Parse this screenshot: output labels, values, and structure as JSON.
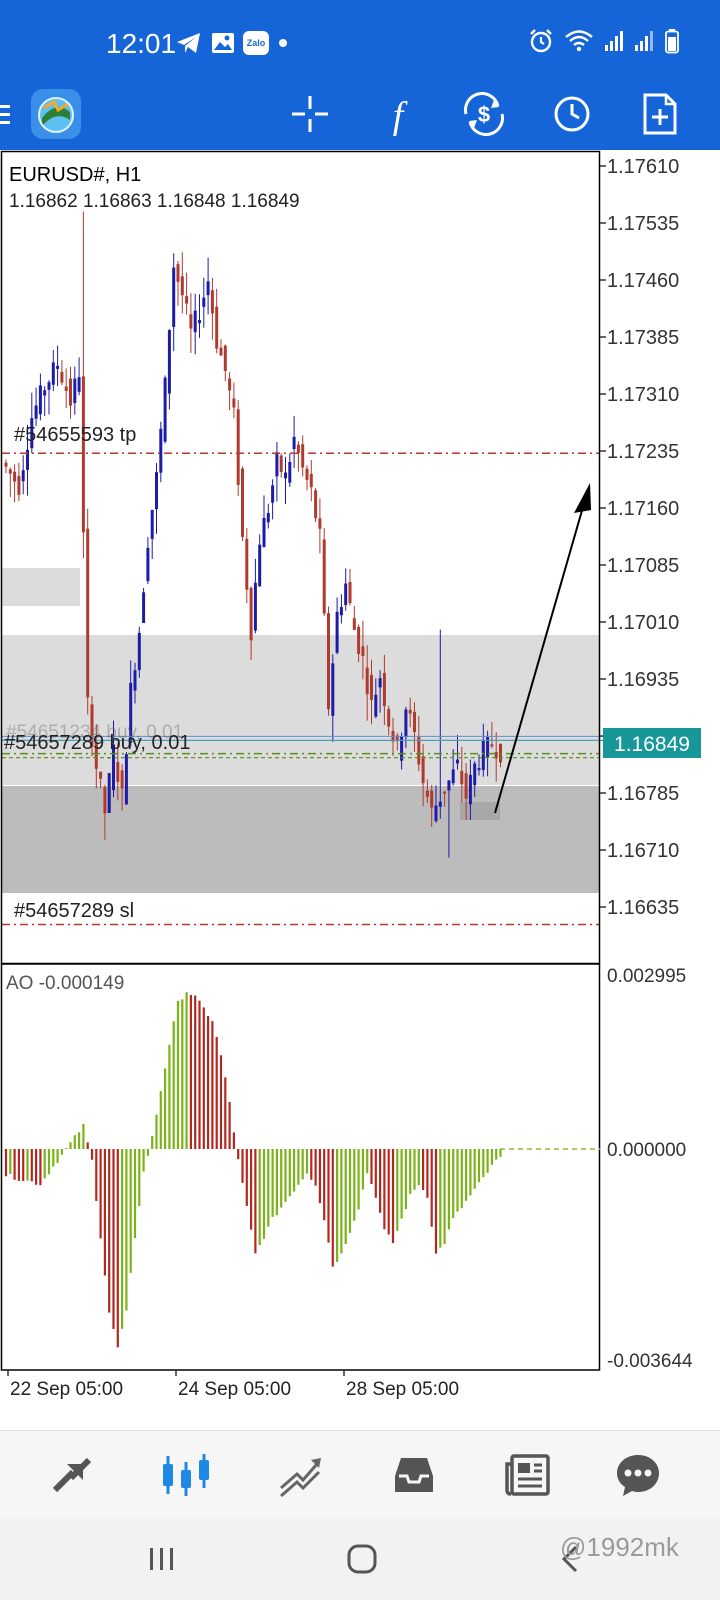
{
  "status_bar": {
    "time": "12:01",
    "left_icons": [
      "telegram-icon",
      "gallery-icon",
      "zalo-icon",
      "dot-icon"
    ],
    "zalo_text": "Zalo",
    "right_icons": [
      "alarm-icon",
      "wifi-icon",
      "signal-icon",
      "signal-icon",
      "battery-icon"
    ]
  },
  "toolbar": {
    "buttons": [
      "menu-icon",
      "metatrader-logo",
      "crosshair-icon",
      "indicator-f-icon",
      "trade-dollar-icon",
      "period-clock-icon",
      "new-order-icon"
    ],
    "f_glyph": "f"
  },
  "chart": {
    "symbol": "EURUSD#, H1",
    "ohlc": "1.16862 1.16863 1.16848 1.16849",
    "price_axis": [
      "1.17610",
      "1.17535",
      "1.17460",
      "1.17385",
      "1.17310",
      "1.17235",
      "1.17160",
      "1.17085",
      "1.17010",
      "1.16935",
      "1.16860",
      "1.16785",
      "1.16710",
      "1.16635"
    ],
    "ylim": [
      1.1661,
      1.1764
    ],
    "current_price": "1.16849",
    "current_price_value": 1.16849,
    "tp_label": "#54655593 tp",
    "tp_value": 1.17232,
    "position_label": "#54657289 buy, 0.01",
    "position_value": 1.16842,
    "sl_label": "#54657289 sl",
    "sl_value": 1.16612,
    "hidden_order_label": "#54651234 buy, 0.01",
    "date_labels": [
      "22 Sep 05:00",
      "24 Sep 05:00",
      "28 Sep 05:00"
    ],
    "colors": {
      "bull": "#1c1ca8",
      "bear": "#b03a2e",
      "ao_up": "#7ab317",
      "ao_down": "#b0281f",
      "tp_line": "#b03a2e",
      "position_line": "#5a8f1e",
      "price_badge": "#17979a",
      "zone": "#dcdcdc",
      "zone_dark": "#bcbcbc"
    }
  },
  "ao": {
    "label": "AO -0.000149",
    "axis_top": "0.002995",
    "axis_zero": "0.000000",
    "axis_bottom": "-0.003644",
    "range": [
      -0.003644,
      0.002995
    ]
  },
  "bottom_nav": {
    "items": [
      "quotes-icon",
      "chart-icon",
      "trade-icon",
      "history-icon",
      "news-icon",
      "chat-icon"
    ],
    "active": "chart-icon"
  },
  "system_nav": {
    "items": [
      "recent-apps-icon",
      "home-icon",
      "back-icon"
    ]
  },
  "watermark": "@1992mk"
}
